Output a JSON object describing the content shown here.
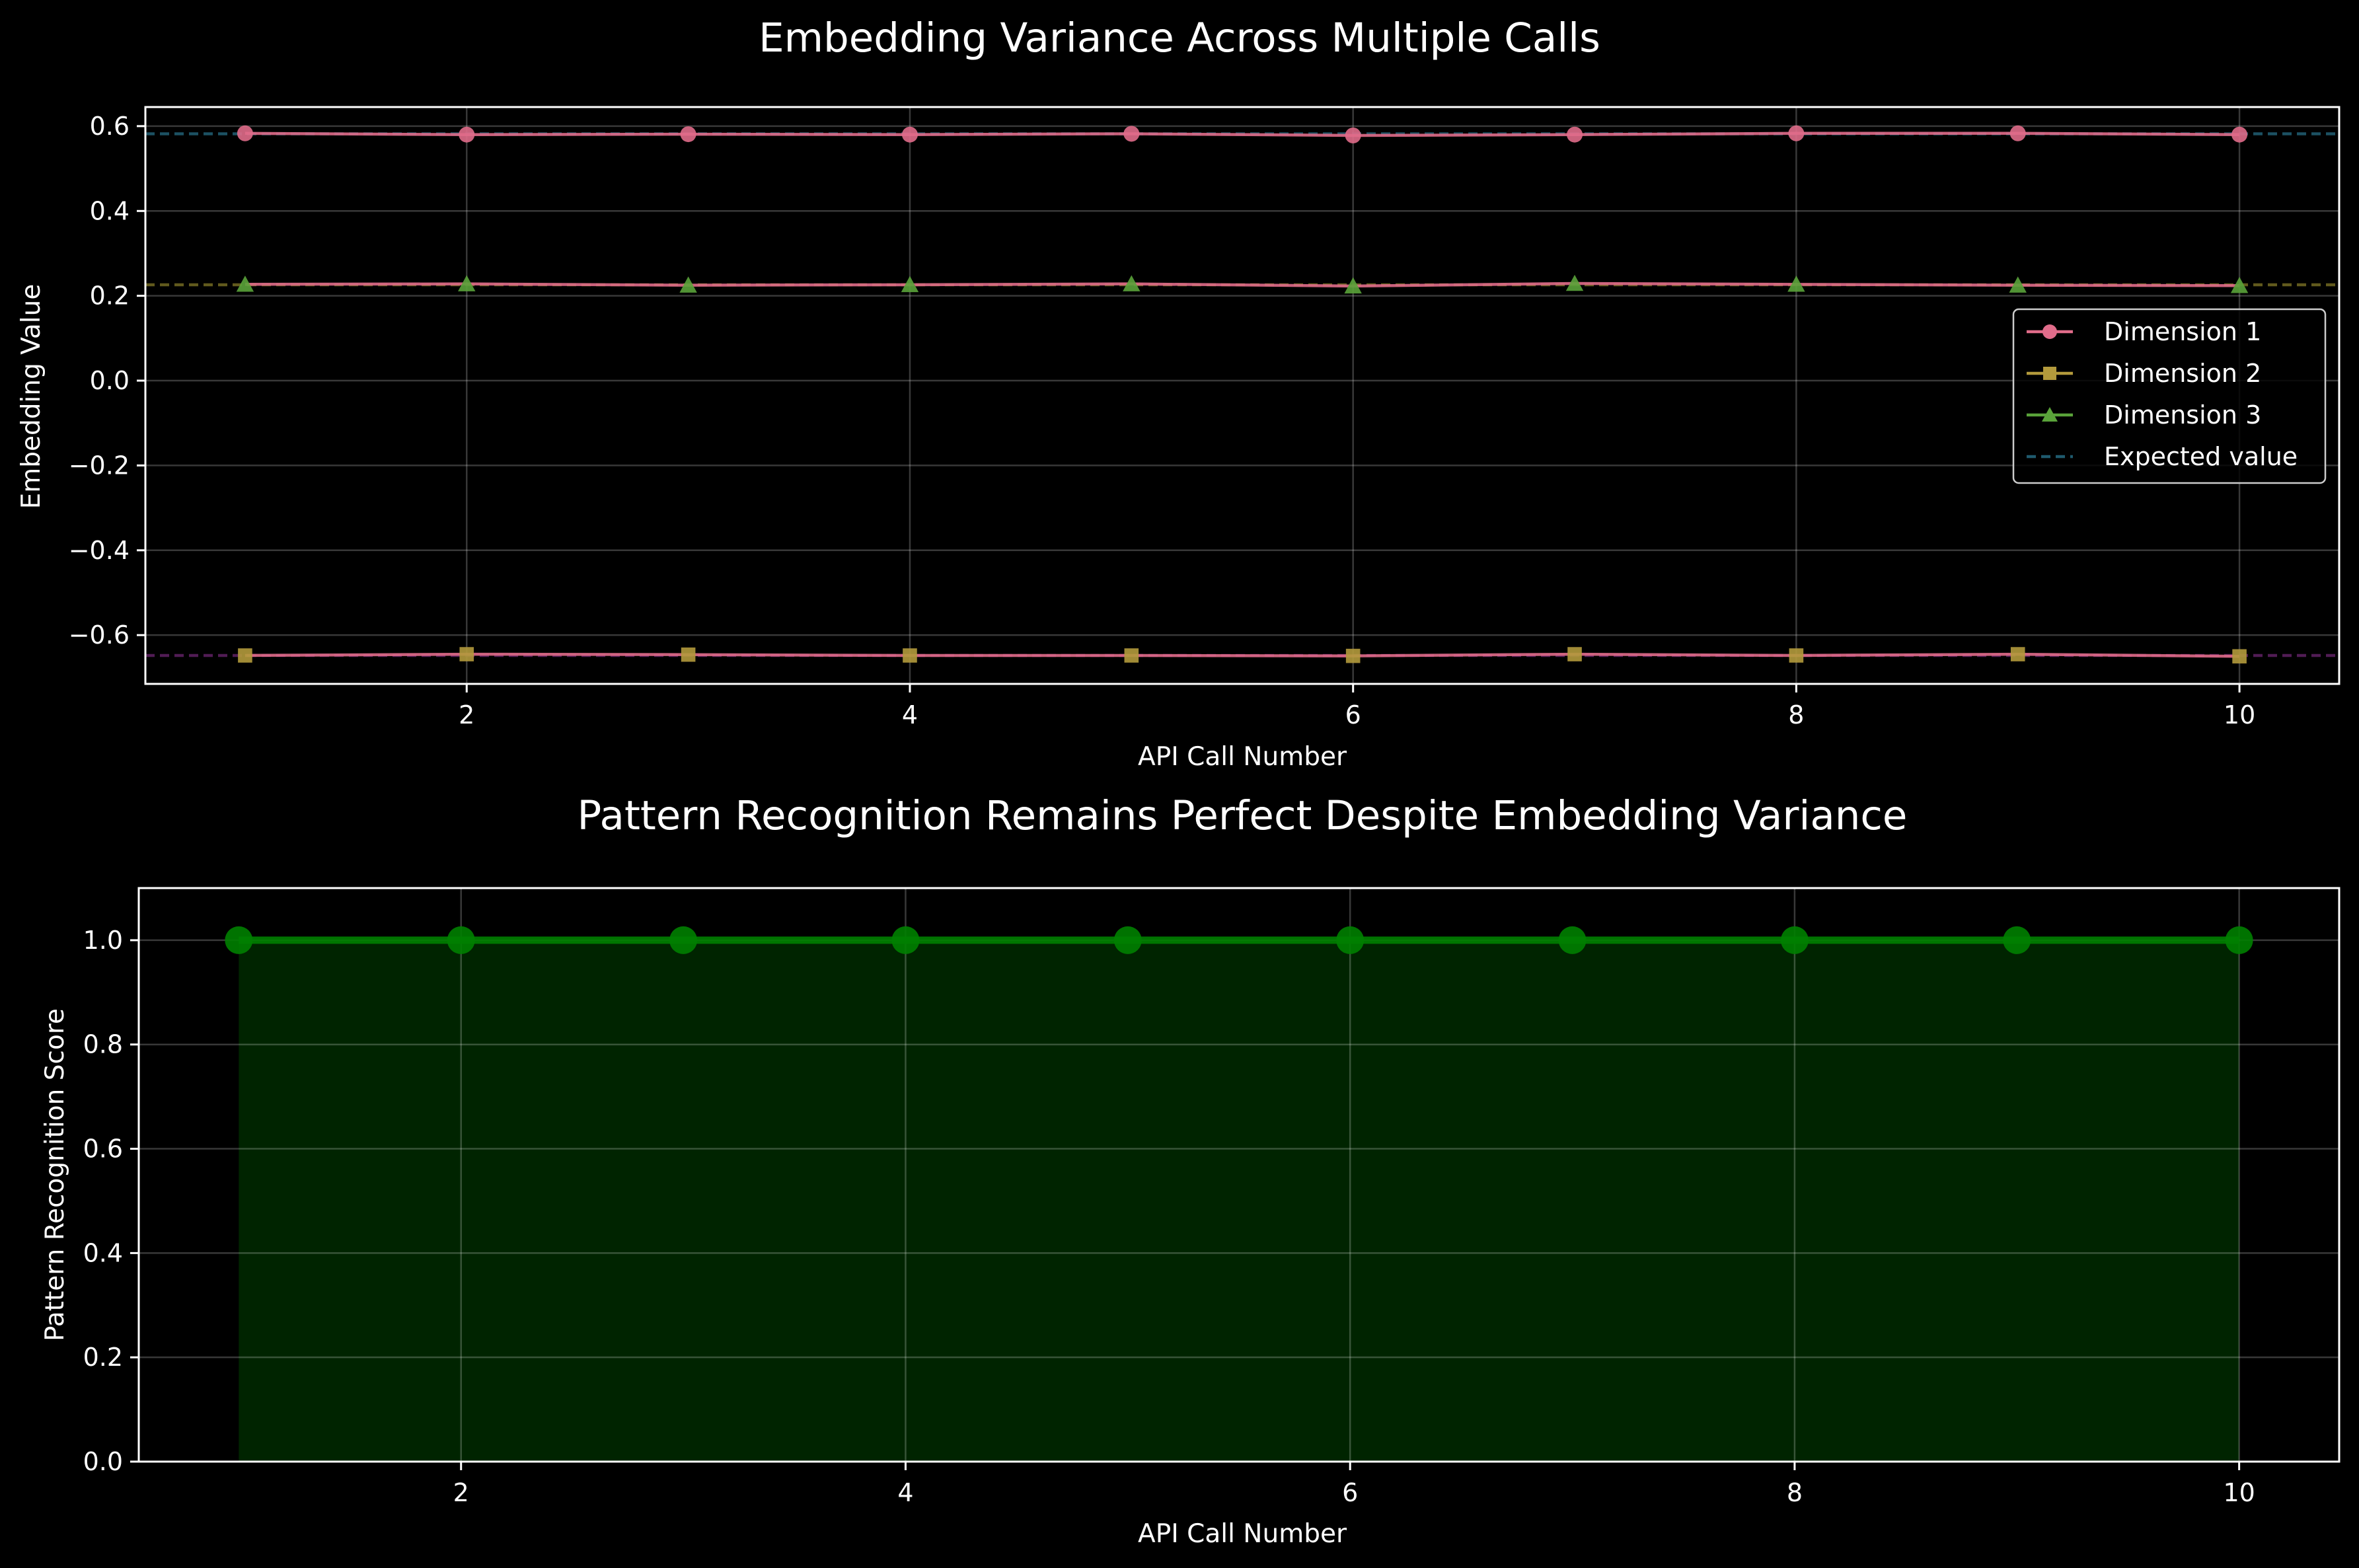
{
  "chart_data": [
    {
      "type": "line",
      "title": "Embedding Variance Across Multiple Calls",
      "xlabel": "API Call Number",
      "ylabel": "Embedding Value",
      "xlim": [
        0.55,
        10.45
      ],
      "ylim": [
        -0.715,
        0.645
      ],
      "xticks": [
        2,
        4,
        6,
        8,
        10
      ],
      "yticks": [
        -0.6,
        -0.4,
        -0.2,
        0.0,
        0.2,
        0.4,
        0.6
      ],
      "ytick_labels": [
        "−0.6",
        "−0.4",
        "−0.2",
        "0.0",
        "0.2",
        "0.4",
        "0.6"
      ],
      "grid": true,
      "legend_position": "center-right",
      "x": [
        1,
        2,
        3,
        4,
        5,
        6,
        7,
        8,
        9,
        10
      ],
      "series": [
        {
          "name": "Dimension 1",
          "marker": "circle",
          "color": "#e06c8a",
          "values": [
            0.583,
            0.58,
            0.581,
            0.58,
            0.582,
            0.578,
            0.58,
            0.583,
            0.583,
            0.58
          ]
        },
        {
          "name": "Dimension 2",
          "marker": "square",
          "color": "#b39a3c",
          "values": [
            -0.648,
            -0.645,
            -0.646,
            -0.648,
            -0.648,
            -0.649,
            -0.645,
            -0.648,
            -0.645,
            -0.65
          ]
        },
        {
          "name": "Dimension 3",
          "marker": "triangle",
          "color": "#5aa33a",
          "values": [
            0.227,
            0.228,
            0.225,
            0.226,
            0.228,
            0.223,
            0.229,
            0.227,
            0.225,
            0.224
          ]
        }
      ],
      "reference_lines": [
        {
          "name": "Expected value",
          "value": 0.582,
          "color": "#1f5a6e"
        },
        {
          "value": 0.226,
          "color": "#6b6420"
        },
        {
          "value": -0.648,
          "color": "#5a1f5e"
        }
      ],
      "connector_color": "#e06c8a"
    },
    {
      "type": "area",
      "title": "Pattern Recognition Remains Perfect Despite Embedding Variance",
      "xlabel": "API Call Number",
      "ylabel": "Pattern Recognition Score",
      "xlim": [
        0.55,
        10.45
      ],
      "ylim": [
        0.0,
        1.1
      ],
      "xticks": [
        2,
        4,
        6,
        8,
        10
      ],
      "yticks": [
        0.0,
        0.2,
        0.4,
        0.6,
        0.8,
        1.0
      ],
      "ytick_labels": [
        "0.0",
        "0.2",
        "0.4",
        "0.6",
        "0.8",
        "1.0"
      ],
      "grid": true,
      "x": [
        1,
        2,
        3,
        4,
        5,
        6,
        7,
        8,
        9,
        10
      ],
      "series": [
        {
          "marker": "circle",
          "color": "#008000",
          "fill_color": "#002400",
          "values": [
            1,
            1,
            1,
            1,
            1,
            1,
            1,
            1,
            1,
            1
          ]
        }
      ]
    }
  ]
}
